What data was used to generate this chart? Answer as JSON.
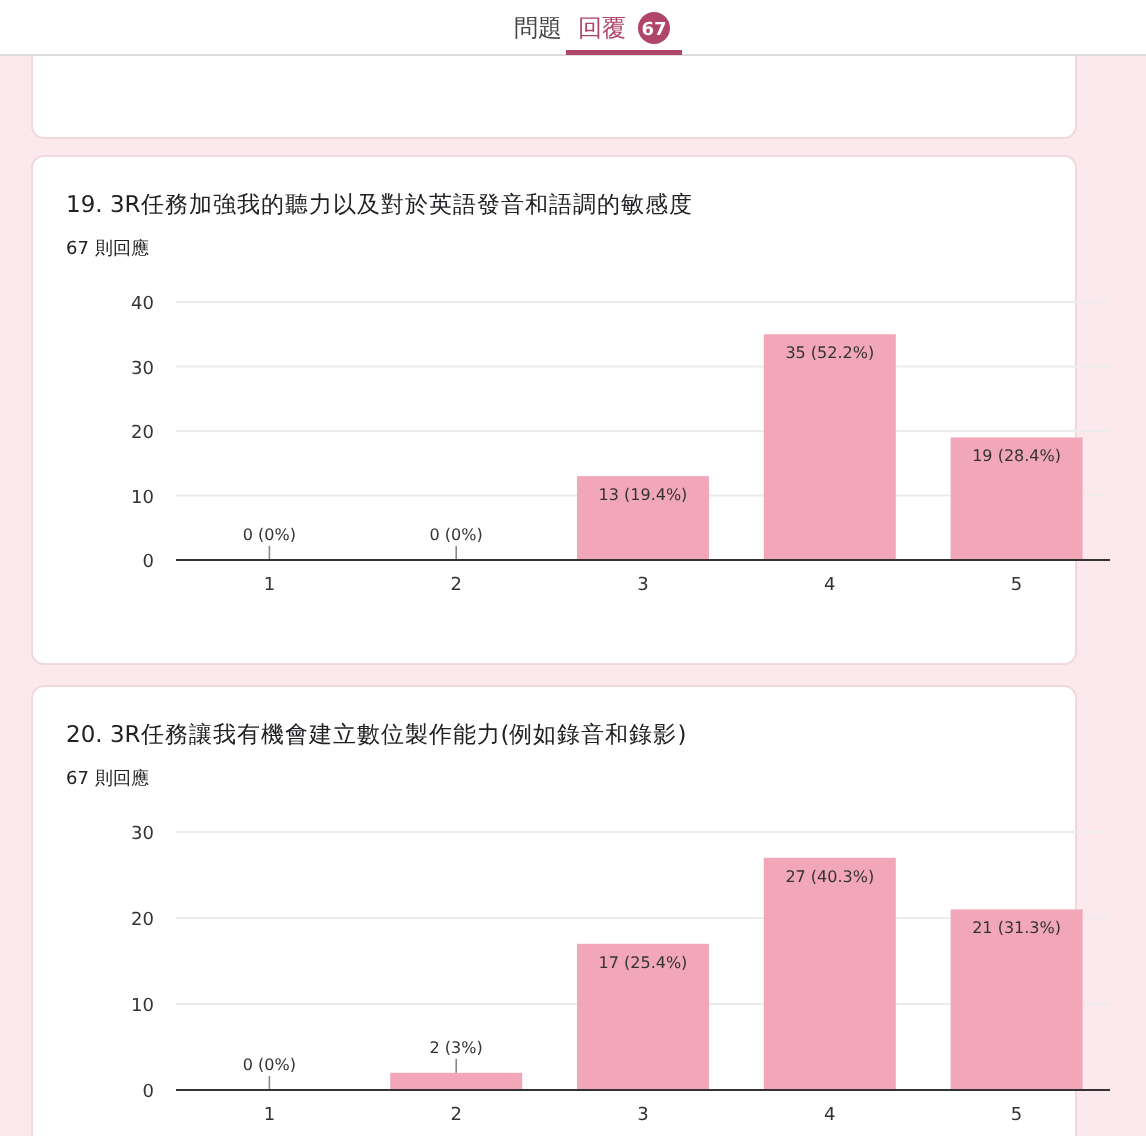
{
  "chart_data": [
    {
      "type": "other",
      "annotations": [
        "問題",
        "回覆",
        "67"
      ]
    },
    {
      "type": "bar",
      "title": "19. 3R任務加強我的聽力以及對於英語發音和語調的敏感度",
      "subtitle": "67 則回應",
      "categories": [
        "1",
        "2",
        "3",
        "4",
        "5"
      ],
      "values": [
        0,
        0,
        13,
        35,
        19
      ],
      "value_labels": [
        "0 (0%)",
        "0 (0%)",
        "13 (19.4%)",
        "35 (52.2%)",
        "19 (28.4%)"
      ],
      "color": "#f2a7b9",
      "ylim": [
        0,
        40
      ],
      "yticks": [
        0,
        10,
        20,
        30,
        40
      ],
      "grid": "y"
    },
    {
      "type": "bar",
      "title": "20. 3R任務讓我有機會建立數位製作能力(例如錄音和錄影)",
      "subtitle": "67 則回應",
      "categories": [
        "1",
        "2",
        "3",
        "4",
        "5"
      ],
      "values": [
        0,
        2,
        17,
        27,
        21
      ],
      "value_labels": [
        "0 (0%)",
        "2 (3%)",
        "17 (25.4%)",
        "27 (40.3%)",
        "21 (31.3%)"
      ],
      "color": "#f2a7b9",
      "ylim": [
        0,
        30
      ],
      "yticks": [
        0,
        10,
        20,
        30
      ],
      "grid": "y"
    }
  ]
}
